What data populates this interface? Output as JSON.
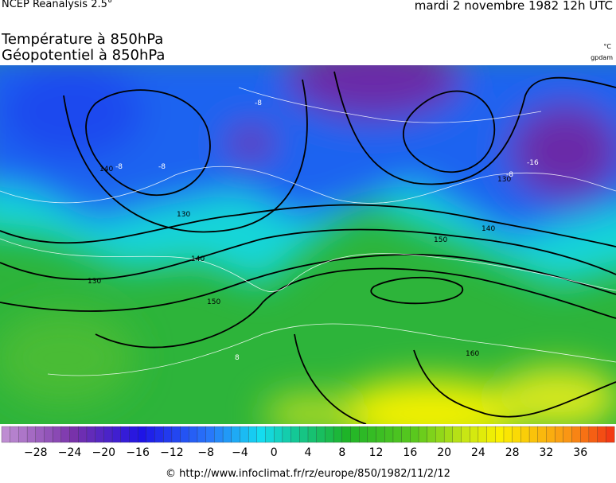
{
  "header": {
    "source": "NCEP Reanalysis 2.5°",
    "date": "mardi 2 novembre 1982 12h UTC"
  },
  "title": {
    "line1": "Température à 850hPa",
    "line2": "Géopotentiel à 850hPa"
  },
  "units": {
    "temperature": "°C",
    "geopotential": "gpdam"
  },
  "contour_labels": [
    "-8",
    "140",
    "-8",
    "130",
    "-16",
    "-8",
    "130",
    "140",
    "150",
    "140",
    "130",
    "150",
    "8",
    "160",
    "-8"
  ],
  "colorbar": {
    "labels": [
      "−28",
      "−24",
      "−20",
      "−16",
      "−12",
      "−8",
      "−4",
      "0",
      "4",
      "8",
      "12",
      "16",
      "20",
      "24",
      "28",
      "32",
      "36"
    ]
  },
  "footer": "© http://www.infoclimat.fr/rz/europe/850/1982/11/2/12"
}
